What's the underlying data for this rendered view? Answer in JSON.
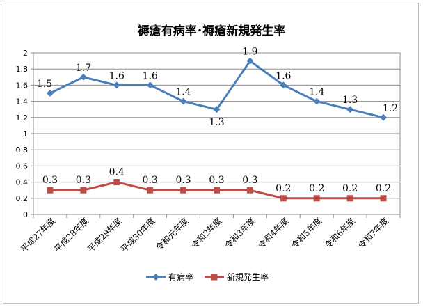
{
  "chart_data": {
    "type": "line",
    "title": "褥瘡有病率･褥瘡新規発生率",
    "categories": [
      "平成27年度",
      "平成28年度",
      "平成29年度",
      "平成30年度",
      "令和元年度",
      "令和2年度",
      "令和3年度",
      "令和4年度",
      "令和5年度",
      "令和6年度",
      "令和7年度"
    ],
    "series": [
      {
        "name": "有病率",
        "values": [
          1.5,
          1.7,
          1.6,
          1.6,
          1.4,
          1.3,
          1.9,
          1.6,
          1.4,
          1.3,
          1.2
        ],
        "color": "#4a7ebb",
        "marker": "diamond"
      },
      {
        "name": "新規発生率",
        "values": [
          0.3,
          0.3,
          0.4,
          0.3,
          0.3,
          0.3,
          0.3,
          0.2,
          0.2,
          0.2,
          0.2
        ],
        "color": "#be4b48",
        "marker": "square"
      }
    ],
    "ylim": [
      0,
      2
    ],
    "yticks": [
      "0",
      "0.2",
      "0.4",
      "0.6",
      "0.8",
      "1",
      "1.2",
      "1.4",
      "1.6",
      "1.8",
      "2"
    ],
    "grid": true,
    "legend_position": "bottom"
  }
}
